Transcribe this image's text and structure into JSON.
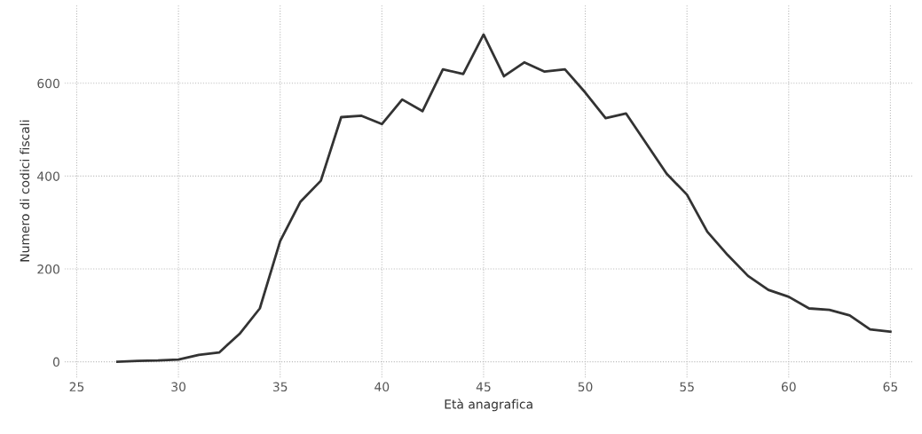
{
  "chart_data": {
    "type": "line",
    "xlabel": "Età anagrafica",
    "ylabel": "Numero di codici fiscali",
    "x": [
      27,
      28,
      29,
      30,
      31,
      32,
      33,
      34,
      35,
      36,
      37,
      38,
      39,
      40,
      41,
      42,
      43,
      44,
      45,
      46,
      47,
      48,
      49,
      50,
      51,
      52,
      53,
      54,
      55,
      56,
      57,
      58,
      59,
      60,
      61,
      62,
      63,
      64,
      65
    ],
    "series": [
      {
        "color": "#333333",
        "values": [
          0,
          2,
          3,
          5,
          15,
          20,
          60,
          115,
          260,
          345,
          390,
          527,
          530,
          512,
          565,
          540,
          630,
          620,
          705,
          615,
          645,
          625,
          630,
          580,
          525,
          535,
          470,
          405,
          360,
          280,
          230,
          185,
          155,
          140,
          115,
          112,
          100,
          70,
          65
        ]
      }
    ],
    "xlim": [
      24.4,
      66.1
    ],
    "ylim": [
      -34,
      770
    ],
    "xticks": [
      25,
      30,
      35,
      40,
      45,
      50,
      55,
      60,
      65
    ],
    "yticks": [
      0,
      200,
      400,
      600
    ],
    "grid": true,
    "marker": "none",
    "line_style": "solid"
  }
}
